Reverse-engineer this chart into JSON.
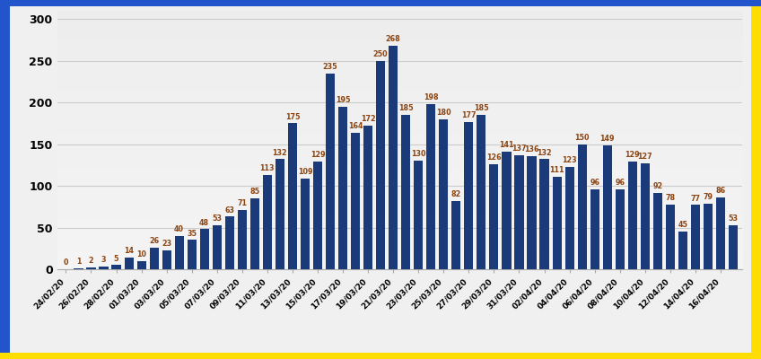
{
  "values": [
    0,
    1,
    2,
    3,
    5,
    14,
    10,
    26,
    23,
    40,
    35,
    48,
    53,
    63,
    71,
    85,
    113,
    132,
    175,
    109,
    129,
    235,
    195,
    164,
    172,
    250,
    268,
    185,
    130,
    198,
    180,
    82,
    177,
    185,
    126,
    141,
    137,
    136,
    132,
    111,
    123,
    150,
    96,
    149,
    96,
    129,
    127,
    92,
    78,
    45,
    77,
    79,
    86,
    53
  ],
  "categories": [
    "24/02/20",
    "26/02/20",
    "28/02/20",
    "01/03/20",
    "03/03/20",
    "05/03/20",
    "07/03/20",
    "09/03/20",
    "11/03/20",
    "13/03/20",
    "15/03/20",
    "17/03/20",
    "19/03/20",
    "21/03/20",
    "23/03/20",
    "25/03/20",
    "27/03/20",
    "29/03/20",
    "31/03/20",
    "02/04/20",
    "04/04/20",
    "06/04/20",
    "08/04/20",
    "10/04/20",
    "12/04/20",
    "14/04/20",
    "16/04/20"
  ],
  "bar_color": "#1a3a7a",
  "label_color": "#8B4513",
  "yticks": [
    0,
    50,
    100,
    150,
    200,
    250,
    300
  ],
  "ylim": [
    0,
    310
  ],
  "grid_color": "#cccccc",
  "bg_color": "#f0f0f0",
  "border_left_color": "#2255bb",
  "border_right_color": "#ffdd00",
  "border_top_color": "#2255bb",
  "value_fontsize": 5.8,
  "xlabel_fontsize": 6.5,
  "ylabel_fontsize": 9
}
